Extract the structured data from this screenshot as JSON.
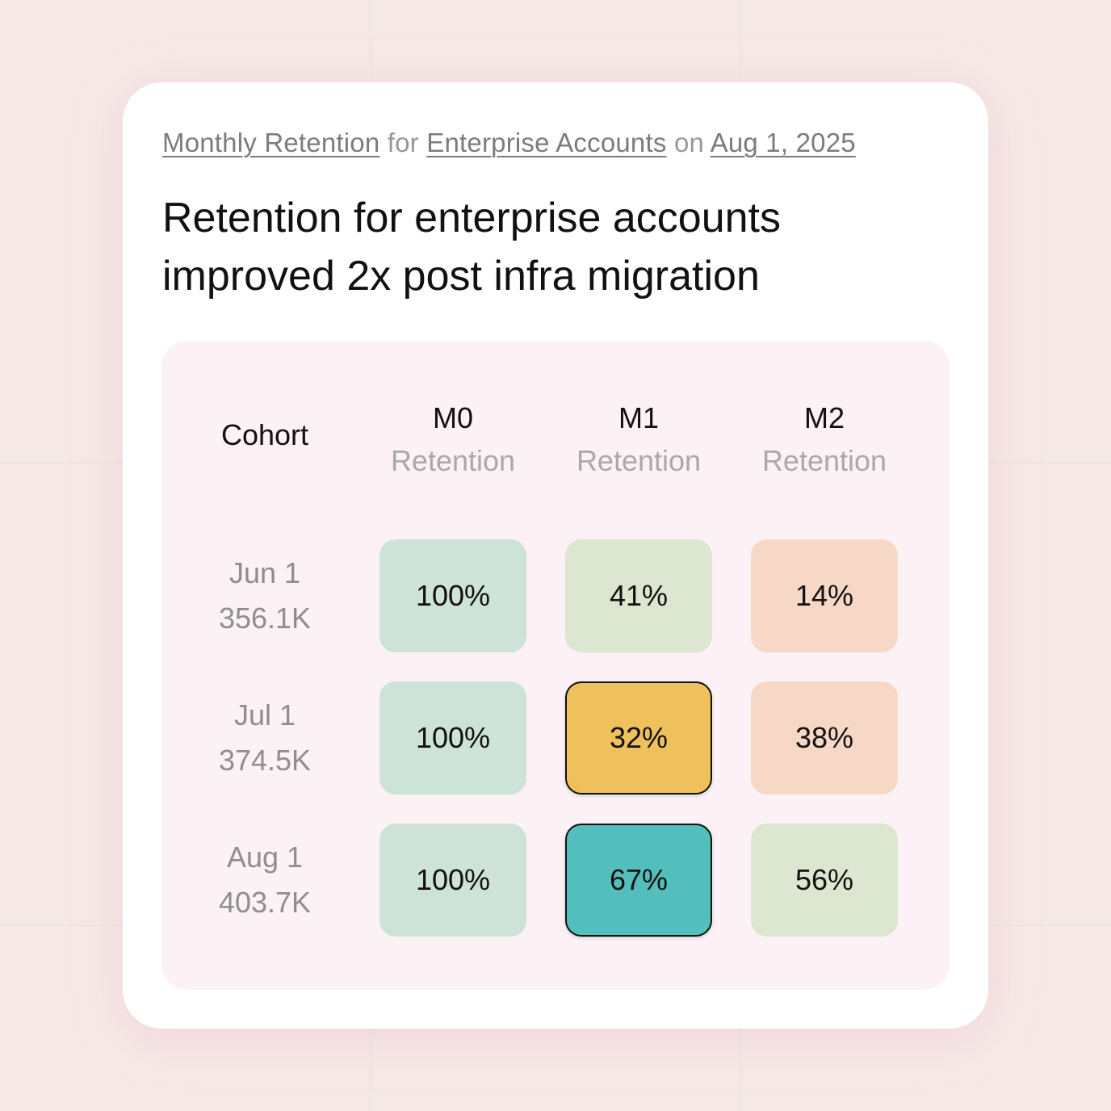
{
  "breadcrumb": {
    "metric": "Monthly Retention",
    "sep1": "for",
    "segment": "Enterprise Accounts",
    "sep2": "on",
    "date": "Aug 1, 2025"
  },
  "headline": "Retention for enterprise accounts improved 2x post infra migration",
  "chart_data": {
    "type": "heatmap",
    "title": "Retention for enterprise accounts improved 2x post infra migration",
    "row_header": "Cohort",
    "columns": [
      {
        "label": "M0",
        "sublabel": "Retention"
      },
      {
        "label": "M1",
        "sublabel": "Retention"
      },
      {
        "label": "M2",
        "sublabel": "Retention"
      }
    ],
    "rows": [
      {
        "cohort": "Jun 1",
        "size": "356.1K",
        "values": [
          100,
          41,
          14
        ],
        "labels": [
          "100%",
          "41%",
          "14%"
        ]
      },
      {
        "cohort": "Jul 1",
        "size": "374.5K",
        "values": [
          100,
          32,
          38
        ],
        "labels": [
          "100%",
          "32%",
          "38%"
        ]
      },
      {
        "cohort": "Aug 1",
        "size": "403.7K",
        "values": [
          100,
          67,
          56
        ],
        "labels": [
          "100%",
          "67%",
          "56%"
        ]
      }
    ],
    "cell_colors": [
      [
        "#cde3d8",
        "#dce6d0",
        "#f7d7c6"
      ],
      [
        "#cde3d8",
        "#efc15c",
        "#f7d7c6"
      ],
      [
        "#cde3d8",
        "#53bfbc",
        "#dce6d0"
      ]
    ],
    "highlighted_cells": [
      [
        1,
        1
      ],
      [
        2,
        1
      ]
    ]
  }
}
